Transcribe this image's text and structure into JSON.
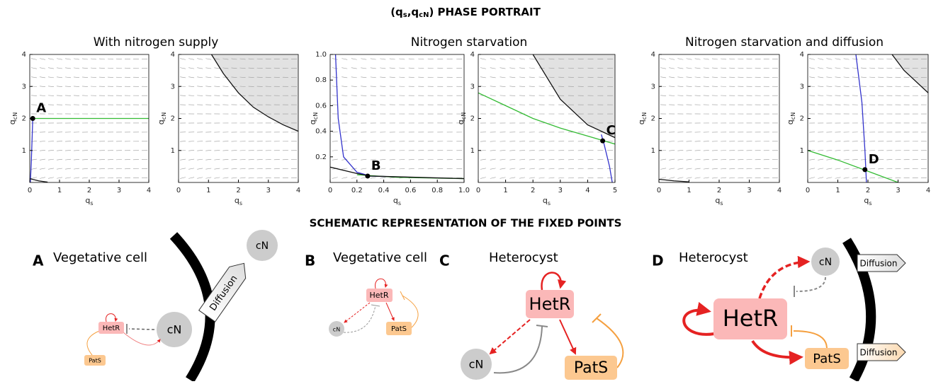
{
  "title_parts": [
    "(q",
    "s",
    ",q",
    "cN",
    ") PHASE PORTRAIT"
  ],
  "panel_titles": [
    "With nitrogen supply",
    "Nitrogen starvation",
    "Nitrogen starvation and diffusion"
  ],
  "chart_data": [
    {
      "type": "line",
      "xlabel": {
        "base": "q",
        "sub": "s"
      },
      "ylabel": {
        "base": "q",
        "sub": "cN"
      },
      "xlim": [
        0,
        4
      ],
      "ylim": [
        0,
        4
      ],
      "xticks": [
        0,
        1,
        2,
        3,
        4
      ],
      "yticks": [
        1,
        2,
        3,
        4
      ],
      "shaded": false,
      "series": [
        {
          "color": "#3333cc",
          "x": [
            0.02,
            0.05,
            0.08,
            0.1
          ],
          "y": [
            0,
            0.6,
            1.4,
            2
          ]
        },
        {
          "color": "#33bb33",
          "x": [
            0.1,
            1,
            2,
            3,
            4
          ],
          "y": [
            2,
            2,
            2,
            2,
            2
          ]
        },
        {
          "color": "#111111",
          "x": [
            0,
            0.3,
            0.6
          ],
          "y": [
            0.12,
            0.05,
            0.01
          ]
        }
      ],
      "points": [
        {
          "label": "A",
          "x": 0.1,
          "y": 2
        }
      ]
    },
    {
      "type": "line",
      "xlabel": {
        "base": "q",
        "sub": "s"
      },
      "ylabel": {
        "base": "q",
        "sub": "cN"
      },
      "xlim": [
        0,
        4
      ],
      "ylim": [
        0,
        4
      ],
      "xticks": [
        0,
        1,
        2,
        3,
        4
      ],
      "yticks": [
        1,
        2,
        3,
        4
      ],
      "shaded": true,
      "series": [
        {
          "color": "#111111",
          "x": [
            1.1,
            1.5,
            2,
            2.5,
            3,
            3.5,
            4
          ],
          "y": [
            4,
            3.4,
            2.8,
            2.35,
            2.05,
            1.8,
            1.6
          ]
        }
      ],
      "points": []
    },
    {
      "type": "line",
      "xlabel": {
        "base": "q",
        "sub": "s"
      },
      "ylabel": {
        "base": "q",
        "sub": "cN"
      },
      "xlim": [
        0,
        1
      ],
      "ylim": [
        0,
        1
      ],
      "xticks": [
        0,
        0.2,
        0.4,
        0.6,
        0.8,
        {
          "value": 1,
          "label": "1.0"
        }
      ],
      "yticks": [
        0.2,
        0.4,
        0.6,
        0.8,
        {
          "value": 1,
          "label": "1.0"
        }
      ],
      "shaded": false,
      "series": [
        {
          "color": "#3333cc",
          "x": [
            0.04,
            0.06,
            0.1,
            0.2,
            0.3,
            0.6
          ],
          "y": [
            1,
            0.5,
            0.2,
            0.08,
            0.05,
            0.04
          ]
        },
        {
          "color": "#33bb33",
          "x": [
            0.2,
            0.5,
            1
          ],
          "y": [
            0.06,
            0.04,
            0.03
          ]
        },
        {
          "color": "#111111",
          "x": [
            0,
            0.2,
            0.3,
            1
          ],
          "y": [
            0.12,
            0.07,
            0.05,
            0.03
          ]
        }
      ],
      "points": [
        {
          "label": "B",
          "x": 0.28,
          "y": 0.05
        }
      ]
    },
    {
      "type": "line",
      "xlabel": {
        "base": "q",
        "sub": "s"
      },
      "ylabel": {
        "base": "q",
        "sub": "cN"
      },
      "xlim": [
        0,
        5
      ],
      "ylim": [
        0,
        4
      ],
      "xticks": [
        0,
        1,
        2,
        3,
        4,
        5
      ],
      "yticks": [
        1,
        2,
        3,
        4
      ],
      "shaded": true,
      "series": [
        {
          "color": "#111111",
          "x": [
            2,
            3,
            4,
            5
          ],
          "y": [
            4,
            2.6,
            1.8,
            1.4
          ]
        },
        {
          "color": "#33bb33",
          "x": [
            0,
            1,
            2,
            3,
            4,
            5
          ],
          "y": [
            2.8,
            2.4,
            2,
            1.7,
            1.45,
            1.2
          ]
        },
        {
          "color": "#3333cc",
          "x": [
            4.5,
            4.6,
            4.8,
            4.9
          ],
          "y": [
            1.5,
            1.2,
            0.5,
            0
          ]
        }
      ],
      "points": [
        {
          "label": "C",
          "x": 4.55,
          "y": 1.3
        }
      ]
    },
    {
      "type": "line",
      "xlabel": {
        "base": "q",
        "sub": "s"
      },
      "ylabel": {
        "base": "q",
        "sub": "cN"
      },
      "xlim": [
        0,
        4
      ],
      "ylim": [
        0,
        4
      ],
      "xticks": [
        0,
        1,
        2,
        3,
        4
      ],
      "yticks": [
        1,
        2,
        3,
        4
      ],
      "shaded": false,
      "series": [
        {
          "color": "#111111",
          "x": [
            0,
            0.5,
            1
          ],
          "y": [
            0.1,
            0.05,
            0.02
          ]
        }
      ],
      "points": []
    },
    {
      "type": "line",
      "xlabel": {
        "base": "q",
        "sub": "s"
      },
      "ylabel": {
        "base": "q",
        "sub": "cN"
      },
      "xlim": [
        0,
        4
      ],
      "ylim": [
        0,
        4
      ],
      "xticks": [
        0,
        1,
        2,
        3,
        4
      ],
      "yticks": [
        1,
        2,
        3,
        4
      ],
      "shaded": true,
      "series": [
        {
          "color": "#111111",
          "x": [
            2.8,
            3.2,
            4
          ],
          "y": [
            4,
            3.5,
            2.8
          ]
        },
        {
          "color": "#3333cc",
          "x": [
            1.6,
            1.8,
            1.9,
            1.95
          ],
          "y": [
            4,
            2.5,
            1,
            0
          ]
        },
        {
          "color": "#33bb33",
          "x": [
            0,
            1,
            2,
            3
          ],
          "y": [
            1,
            0.7,
            0.35,
            0
          ]
        }
      ],
      "points": [
        {
          "label": "D",
          "x": 1.9,
          "y": 0.4
        }
      ]
    }
  ],
  "schematic": {
    "title": "SCHEMATIC REPRESENTATION OF THE FIXED POINTS",
    "panels": [
      {
        "letter": "A",
        "title": "Vegetative cell",
        "nodes": [
          "HetR",
          "PatS",
          "cN",
          "cN",
          "Diffusion"
        ]
      },
      {
        "letter": "B",
        "title": "Vegetative cell",
        "nodes": [
          "HetR",
          "PatS",
          "cN"
        ]
      },
      {
        "letter": "C",
        "title": "Heterocyst",
        "nodes": [
          "HetR",
          "PatS",
          "cN"
        ]
      },
      {
        "letter": "D",
        "title": "Heterocyst",
        "nodes": [
          "HetR",
          "PatS",
          "cN",
          "Diffusion",
          "Diffusion"
        ]
      }
    ]
  }
}
